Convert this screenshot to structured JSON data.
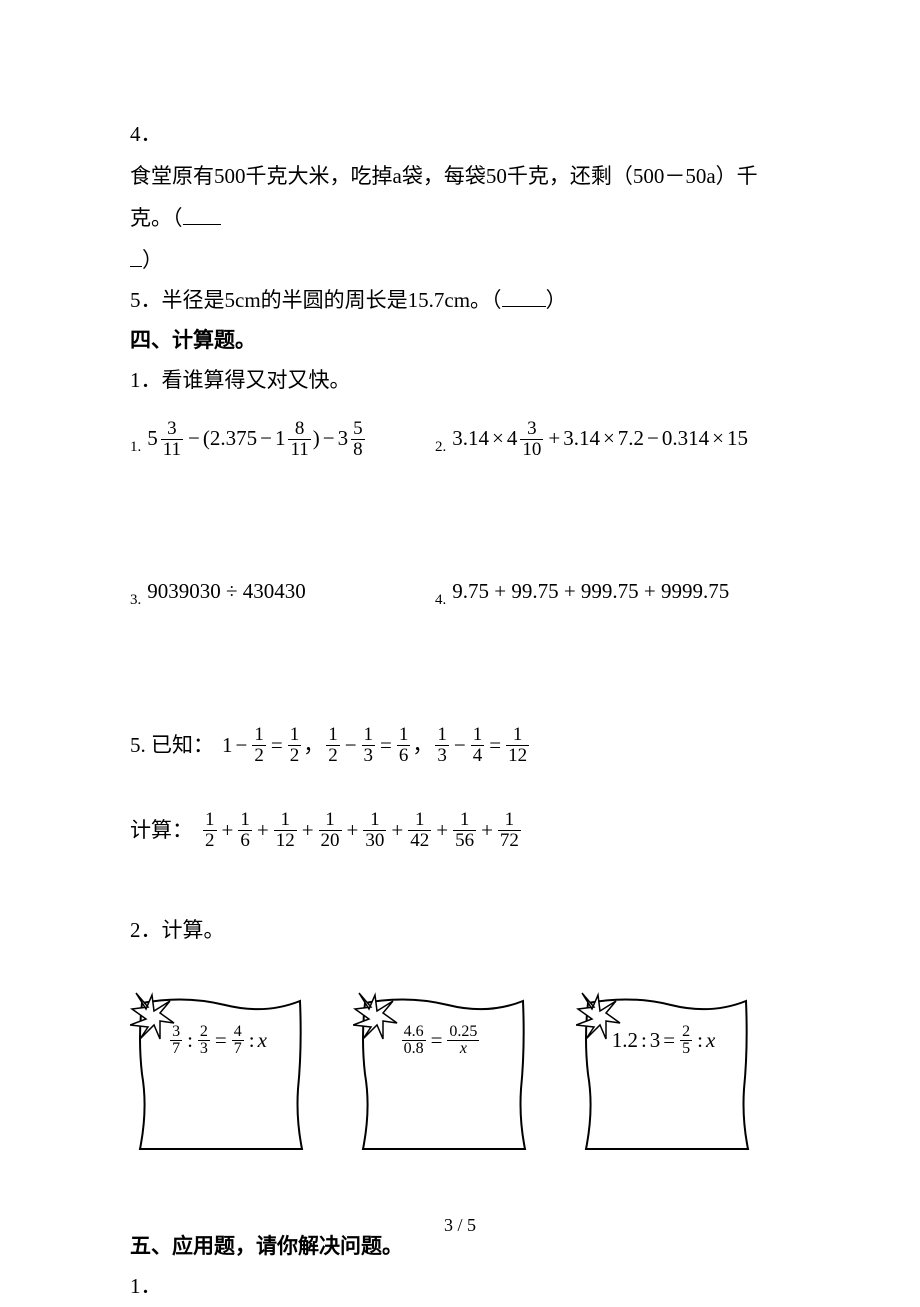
{
  "q4": {
    "num": "4．",
    "text_a": "食堂原有500千克大米，吃掉a袋，每袋50千克，还剩（500－50a）千克。（",
    "text_b": "）"
  },
  "q5": {
    "num": "5．",
    "text_a": "半径是5cm的半圆的周长是15.7cm。（",
    "text_b": "）"
  },
  "sec4": {
    "title": "四、计算题。",
    "p1": "1．看谁算得又对又快。"
  },
  "eq1": {
    "idx": "1.",
    "a_int": "5",
    "a_num": "3",
    "a_den": "11",
    "b": "2.375",
    "c_int": "1",
    "c_num": "8",
    "c_den": "11",
    "d_int": "3",
    "d_num": "5",
    "d_den": "8"
  },
  "eq2": {
    "idx": "2.",
    "a": "3.14",
    "b_int": "4",
    "b_num": "3",
    "b_den": "10",
    "c": "3.14",
    "d": "7.2",
    "e": "0.314",
    "f": "15"
  },
  "eq3": {
    "idx": "3.",
    "expr": "9039030 ÷ 430430"
  },
  "eq4": {
    "idx": "4.",
    "expr": "9.75 + 99.75 + 999.75 + 9999.75"
  },
  "eq5": {
    "label": "5. 已知：",
    "k1_lhs_a": "1",
    "k1_rhs_num": "1",
    "k1_rhs_den": "2",
    "k1_eq_num": "1",
    "k1_eq_den": "2",
    "k2_a_num": "1",
    "k2_a_den": "2",
    "k2_b_num": "1",
    "k2_b_den": "3",
    "k2_eq_num": "1",
    "k2_eq_den": "6",
    "k3_a_num": "1",
    "k3_a_den": "3",
    "k3_b_num": "1",
    "k3_b_den": "4",
    "k3_eq_num": "1",
    "k3_eq_den": "12",
    "calc_label": "计算：",
    "series_dens": [
      "2",
      "6",
      "12",
      "20",
      "30",
      "42",
      "56",
      "72"
    ]
  },
  "p2": "2．计算。",
  "card1": {
    "a_num": "3",
    "a_den": "7",
    "b_num": "2",
    "b_den": "3",
    "c_num": "4",
    "c_den": "7",
    "x": "x"
  },
  "card2": {
    "a_num": "4.6",
    "a_den": "0.8",
    "b_num": "0.25",
    "b_var": "x"
  },
  "card3": {
    "a": "1.2",
    "b": "3",
    "c_num": "2",
    "c_den": "5",
    "x": "x"
  },
  "sec5": {
    "title": "五、应用题，请你解决问题。",
    "p1": "1．"
  },
  "footer": "3 / 5",
  "style": {
    "blank_q4": 38,
    "blank_q5": 44
  }
}
